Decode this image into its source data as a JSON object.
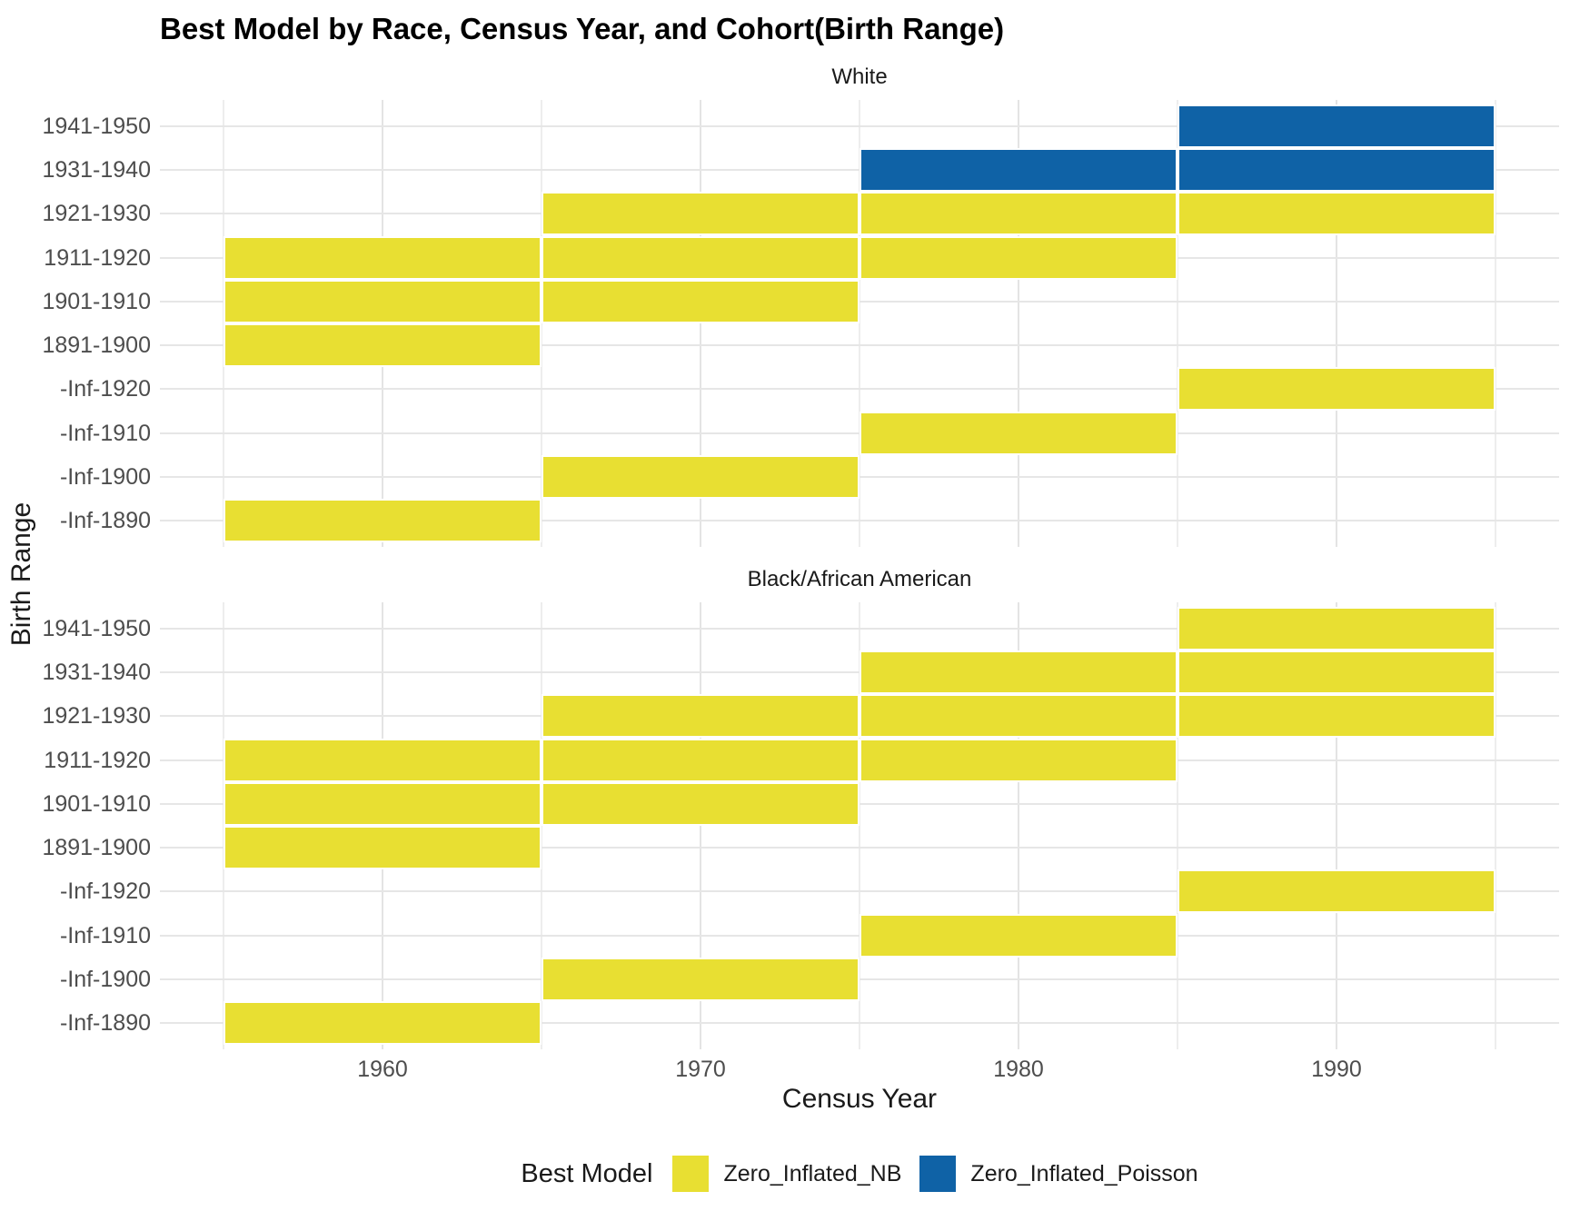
{
  "chart_data": {
    "type": "heatmap",
    "title": "Best Model by Race, Census Year, and Cohort(Birth Range)",
    "xlabel": "Census Year",
    "ylabel": "Birth Range",
    "x_ticks": [
      1960,
      1970,
      1980,
      1990
    ],
    "x_minor_ticks": [
      1955,
      1965,
      1975,
      1985,
      1995
    ],
    "x_range": [
      1953,
      1997
    ],
    "tile_width_years": 10,
    "grid": true,
    "legend_position": "bottom",
    "y_categories": [
      "1941-1950",
      "1931-1940",
      "1921-1930",
      "1911-1920",
      "1901-1910",
      "1891-1900",
      "-Inf-1920",
      "-Inf-1910",
      "-Inf-1900",
      "-Inf-1890"
    ],
    "facets": [
      {
        "label": "White",
        "cells": [
          {
            "row": "1941-1950",
            "year": 1990,
            "model": "Zero_Inflated_Poisson"
          },
          {
            "row": "1931-1940",
            "year": 1980,
            "model": "Zero_Inflated_Poisson"
          },
          {
            "row": "1931-1940",
            "year": 1990,
            "model": "Zero_Inflated_Poisson"
          },
          {
            "row": "1921-1930",
            "year": 1970,
            "model": "Zero_Inflated_NB"
          },
          {
            "row": "1921-1930",
            "year": 1980,
            "model": "Zero_Inflated_NB"
          },
          {
            "row": "1921-1930",
            "year": 1990,
            "model": "Zero_Inflated_NB"
          },
          {
            "row": "1911-1920",
            "year": 1960,
            "model": "Zero_Inflated_NB"
          },
          {
            "row": "1911-1920",
            "year": 1970,
            "model": "Zero_Inflated_NB"
          },
          {
            "row": "1911-1920",
            "year": 1980,
            "model": "Zero_Inflated_NB"
          },
          {
            "row": "1901-1910",
            "year": 1960,
            "model": "Zero_Inflated_NB"
          },
          {
            "row": "1901-1910",
            "year": 1970,
            "model": "Zero_Inflated_NB"
          },
          {
            "row": "1891-1900",
            "year": 1960,
            "model": "Zero_Inflated_NB"
          },
          {
            "row": "-Inf-1920",
            "year": 1990,
            "model": "Zero_Inflated_NB"
          },
          {
            "row": "-Inf-1910",
            "year": 1980,
            "model": "Zero_Inflated_NB"
          },
          {
            "row": "-Inf-1900",
            "year": 1970,
            "model": "Zero_Inflated_NB"
          },
          {
            "row": "-Inf-1890",
            "year": 1960,
            "model": "Zero_Inflated_NB"
          }
        ]
      },
      {
        "label": "Black/African American",
        "cells": [
          {
            "row": "1941-1950",
            "year": 1990,
            "model": "Zero_Inflated_NB"
          },
          {
            "row": "1931-1940",
            "year": 1980,
            "model": "Zero_Inflated_NB"
          },
          {
            "row": "1931-1940",
            "year": 1990,
            "model": "Zero_Inflated_NB"
          },
          {
            "row": "1921-1930",
            "year": 1970,
            "model": "Zero_Inflated_NB"
          },
          {
            "row": "1921-1930",
            "year": 1980,
            "model": "Zero_Inflated_NB"
          },
          {
            "row": "1921-1930",
            "year": 1990,
            "model": "Zero_Inflated_NB"
          },
          {
            "row": "1911-1920",
            "year": 1960,
            "model": "Zero_Inflated_NB"
          },
          {
            "row": "1911-1920",
            "year": 1970,
            "model": "Zero_Inflated_NB"
          },
          {
            "row": "1911-1920",
            "year": 1980,
            "model": "Zero_Inflated_NB"
          },
          {
            "row": "1901-1910",
            "year": 1960,
            "model": "Zero_Inflated_NB"
          },
          {
            "row": "1901-1910",
            "year": 1970,
            "model": "Zero_Inflated_NB"
          },
          {
            "row": "1891-1900",
            "year": 1960,
            "model": "Zero_Inflated_NB"
          },
          {
            "row": "-Inf-1920",
            "year": 1990,
            "model": "Zero_Inflated_NB"
          },
          {
            "row": "-Inf-1910",
            "year": 1980,
            "model": "Zero_Inflated_NB"
          },
          {
            "row": "-Inf-1900",
            "year": 1970,
            "model": "Zero_Inflated_NB"
          },
          {
            "row": "-Inf-1890",
            "year": 1960,
            "model": "Zero_Inflated_NB"
          }
        ]
      }
    ],
    "legend": {
      "title": "Best Model",
      "items": [
        {
          "label": "Zero_Inflated_NB",
          "color": "#E8DF32"
        },
        {
          "label": "Zero_Inflated_Poisson",
          "color": "#0F62A6"
        }
      ]
    },
    "colors": {
      "grid_major": "#e4e4e4",
      "grid_minor": "#ededed",
      "tick_text": "#4d4d4d",
      "title_text": "#000000"
    }
  }
}
